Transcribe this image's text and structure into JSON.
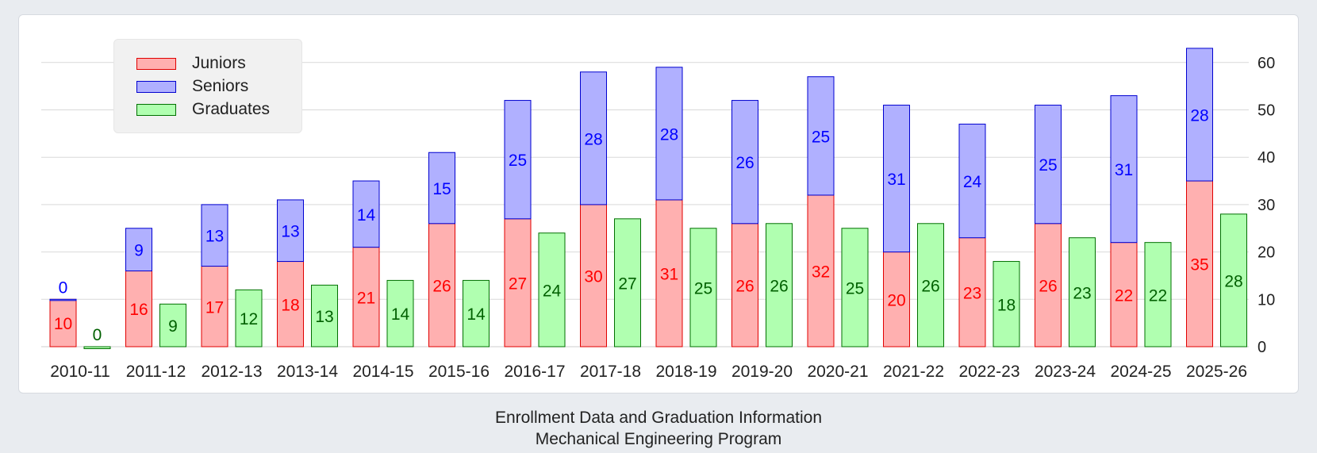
{
  "chart_data": {
    "type": "bar",
    "title": "Enrollment Data and Graduation Information",
    "subtitle": "Mechanical Engineering Program",
    "categories": [
      "2010-11",
      "2011-12",
      "2012-13",
      "2013-14",
      "2014-15",
      "2015-16",
      "2016-17",
      "2017-18",
      "2018-19",
      "2019-20",
      "2020-21",
      "2021-22",
      "2022-23",
      "2023-24",
      "2024-25",
      "2025-26"
    ],
    "series": [
      {
        "name": "Juniors",
        "stack": "students",
        "values": [
          10,
          16,
          17,
          18,
          21,
          26,
          27,
          30,
          31,
          26,
          32,
          20,
          23,
          26,
          22,
          35
        ]
      },
      {
        "name": "Seniors",
        "stack": "students",
        "values": [
          0,
          9,
          13,
          13,
          14,
          15,
          25,
          28,
          28,
          26,
          25,
          31,
          24,
          25,
          31,
          28
        ]
      },
      {
        "name": "Graduates",
        "stack": "graduates",
        "values": [
          0,
          9,
          12,
          13,
          14,
          14,
          24,
          27,
          25,
          26,
          25,
          26,
          18,
          23,
          22,
          28
        ]
      }
    ],
    "ylim": [
      0,
      65
    ],
    "yticks": [
      0,
      10,
      20,
      30,
      40,
      50,
      60
    ],
    "y_axis_side": "right",
    "grid": true,
    "legend_position": "top-left",
    "colors": {
      "Juniors": {
        "fill": "#ffb0b0",
        "stroke": "#e00000",
        "label": "#ff0000"
      },
      "Seniors": {
        "fill": "#b0b0ff",
        "stroke": "#0000d0",
        "label": "#0000ff"
      },
      "Graduates": {
        "fill": "#b0ffb0",
        "stroke": "#007000",
        "label": "#006000"
      }
    }
  }
}
